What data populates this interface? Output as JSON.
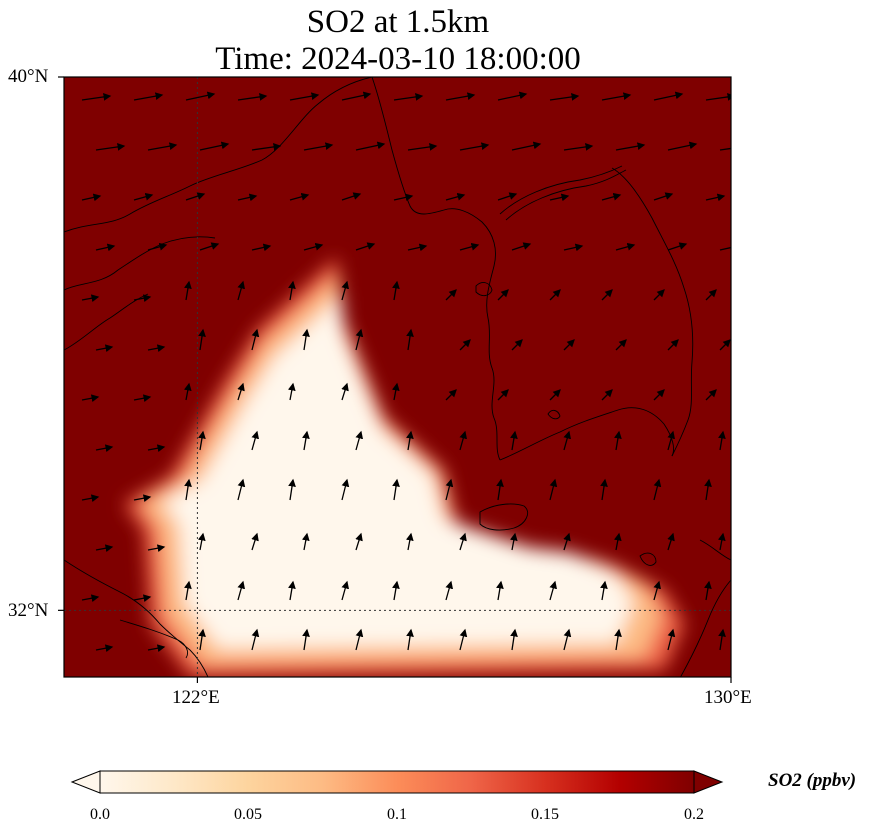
{
  "title": {
    "line1": "SO2 at 1.5km",
    "line2": "Time: 2024-03-10 18:00:00"
  },
  "map": {
    "lat_range": [
      31.0,
      40.0
    ],
    "lon_range": [
      120.0,
      130.0
    ],
    "lat_ticks": [
      {
        "value": 40,
        "label": "40°N"
      },
      {
        "value": 32,
        "label": "32°N"
      }
    ],
    "lon_ticks": [
      {
        "value": 122,
        "label": "122°E"
      },
      {
        "value": 130,
        "label": "130°E"
      }
    ],
    "gridlines": {
      "lat": [
        32
      ],
      "lon": [
        122
      ],
      "style": "dotted"
    },
    "field": "SO2 concentration (ppbv)",
    "background_level_color": "#7f0000",
    "plume_region_lonlat": [
      [
        122.9,
        36.2
      ],
      [
        124.1,
        37.3
      ],
      [
        124.1,
        36.6
      ],
      [
        124.8,
        34.9
      ],
      [
        125.7,
        34.1
      ],
      [
        125.9,
        33.3
      ],
      [
        127.4,
        32.8
      ],
      [
        128.2,
        32.7
      ],
      [
        129.0,
        32.3
      ],
      [
        129.3,
        31.8
      ],
      [
        129.0,
        31.1
      ],
      [
        121.9,
        31.0
      ],
      [
        121.3,
        31.8
      ],
      [
        121.2,
        33.2
      ],
      [
        120.9,
        33.6
      ],
      [
        121.6,
        34.0
      ],
      [
        122.0,
        34.7
      ],
      [
        122.4,
        35.4
      ]
    ],
    "wind_arrows": "black quiver arrows"
  },
  "colorbar": {
    "label": "SO2 (ppbv)",
    "colormap": "OrRd",
    "range": [
      0.0,
      0.2
    ],
    "extend": "both",
    "ticks": [
      {
        "value": 0.0,
        "label": "0.0"
      },
      {
        "value": 0.05,
        "label": "0.05"
      },
      {
        "value": 0.1,
        "label": "0.1"
      },
      {
        "value": 0.15,
        "label": "0.15"
      },
      {
        "value": 0.2,
        "label": "0.2"
      }
    ],
    "stops": [
      "#fff7ec",
      "#fee8c8",
      "#fdd49e",
      "#fdbb84",
      "#fc8d59",
      "#ef6548",
      "#d7301f",
      "#b30000",
      "#7f0000"
    ]
  }
}
